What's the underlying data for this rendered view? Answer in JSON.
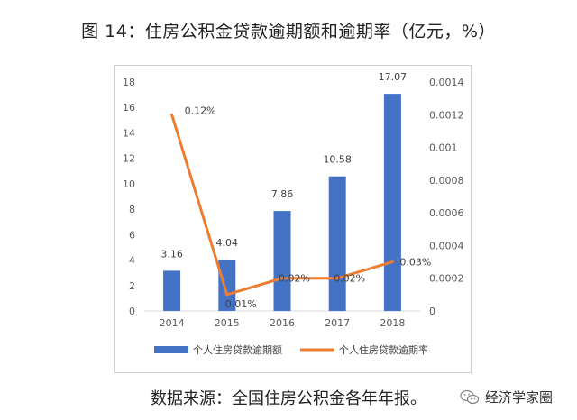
{
  "title": "图 14：住房公积金贷款逾期额和逾期率（亿元，%）",
  "source": "数据来源：全国住房公积金各年年报。",
  "watermark": "经济学家圈",
  "chart_data": {
    "type": "bar+line",
    "categories": [
      "2014",
      "2015",
      "2016",
      "2017",
      "2018"
    ],
    "series": [
      {
        "name": "个人住房贷款逾期额",
        "type": "bar",
        "axis": "left",
        "values": [
          3.16,
          4.04,
          7.86,
          10.58,
          17.07
        ],
        "labels": [
          "3.16",
          "4.04",
          "7.86",
          "10.58",
          "17.07"
        ],
        "color": "#4472C4"
      },
      {
        "name": "个人住房贷款逾期率",
        "type": "line",
        "axis": "right",
        "values": [
          0.0012,
          0.0001,
          0.0002,
          0.0002,
          0.0003
        ],
        "labels": [
          "0.12%",
          "0.01%",
          "0.02%",
          "0.02%",
          "0.03%"
        ],
        "color": "#ED7D31"
      }
    ],
    "y_left": {
      "min": 0,
      "max": 18,
      "step": 2,
      "ticks": [
        "0",
        "2",
        "4",
        "6",
        "8",
        "10",
        "12",
        "14",
        "16",
        "18"
      ]
    },
    "y_right": {
      "min": 0,
      "max": 0.0014,
      "step": 0.0002,
      "ticks": [
        "0",
        "0.0002",
        "0.0004",
        "0.0006",
        "0.0008",
        "0.001",
        "0.0012",
        "0.0014"
      ]
    },
    "grid": false,
    "legend_position": "bottom"
  }
}
